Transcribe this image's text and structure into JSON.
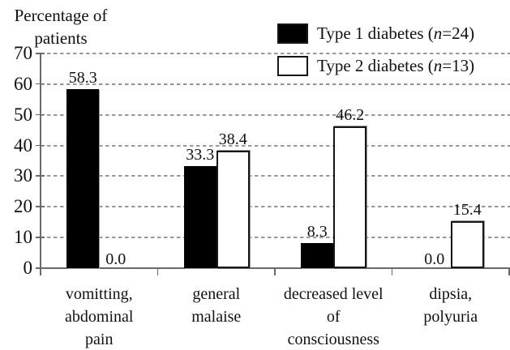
{
  "chart_data": {
    "type": "bar",
    "title_lines": [
      "Percentage of",
      "patients"
    ],
    "ylabel": "Percentage of patients",
    "ylim": [
      0,
      70
    ],
    "yticks": [
      0,
      10,
      20,
      30,
      40,
      50,
      60,
      70
    ],
    "grid": "horizontal-dashed",
    "legend_position": "top-right-inside",
    "categories": [
      {
        "id": "vomitting-abdominal-pain",
        "label_lines": [
          "vomitting,",
          "abdominal",
          "pain"
        ]
      },
      {
        "id": "general-malaise",
        "label_lines": [
          "general",
          "malaise"
        ]
      },
      {
        "id": "decreased-level-of-consciousness",
        "label_lines": [
          "decreased level",
          "of",
          "consciousness"
        ]
      },
      {
        "id": "dipsia-polyuria",
        "label_lines": [
          "dipsia,",
          "polyuria"
        ]
      }
    ],
    "series": [
      {
        "name": "Type 1 diabetes (n=24)",
        "fill": "#000000",
        "values": [
          58.3,
          33.3,
          8.3,
          0.0
        ],
        "value_labels": [
          "58.3",
          "33.3",
          "8.3",
          "0.0"
        ]
      },
      {
        "name": "Type 2 diabetes (n=13)",
        "fill": "#ffffff",
        "values": [
          0.0,
          38.4,
          46.2,
          15.4
        ],
        "value_labels": [
          "0.0",
          "38.4",
          "46.2",
          "15.4"
        ]
      }
    ],
    "legend": [
      {
        "prefix": "Type 1 diabetes (",
        "n_italic": "n",
        "suffix": "=24)",
        "swatch": "#000000"
      },
      {
        "prefix": "Type 2 diabetes (",
        "n_italic": "n",
        "suffix": "=13)",
        "swatch": "#ffffff"
      }
    ],
    "colors": {
      "bar_type1": "#000000",
      "bar_type2": "#ffffff",
      "bar_border": "#161616",
      "gridline": "#999999",
      "axis": "#6a6a6a",
      "text": "#111111"
    }
  }
}
